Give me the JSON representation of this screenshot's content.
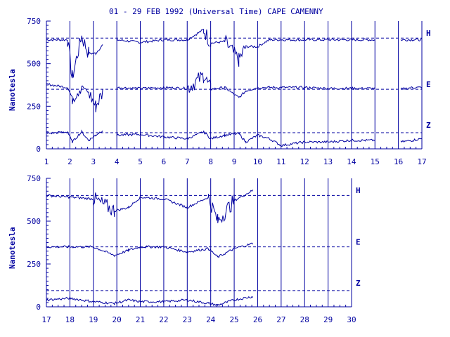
{
  "title": "01 - 29 FEB 1992 (Universal Time) CAPE CAMENNY",
  "colors": {
    "ink": "#0000a0",
    "background": "#ffffff"
  },
  "chart_data": [
    {
      "type": "line",
      "panel": "upper",
      "ylabel": "Nanotesla",
      "ylim": [
        0,
        750
      ],
      "yticks": [
        0,
        250,
        500,
        750
      ],
      "xlim": [
        1,
        17
      ],
      "xticks": [
        1,
        2,
        3,
        4,
        5,
        6,
        7,
        8,
        9,
        10,
        11,
        12,
        13,
        14,
        15,
        16,
        17
      ],
      "baselines": {
        "H": 650,
        "E": 350,
        "Z": 95
      },
      "series": [
        {
          "name": "H",
          "x": [
            1,
            1.9,
            2.1,
            2.5,
            2.8,
            3.1,
            3.4,
            3.6,
            4,
            5,
            6,
            7,
            7.7,
            8,
            8.6,
            9.2,
            9.5,
            10,
            10.5,
            11,
            12,
            13,
            14,
            15,
            15.1,
            16.1,
            16.6,
            17
          ],
          "values": [
            640,
            640,
            420,
            660,
            560,
            560,
            610,
            null,
            640,
            625,
            640,
            640,
            700,
            620,
            630,
            520,
            600,
            600,
            640,
            640,
            640,
            640,
            640,
            640,
            null,
            640,
            640,
            640
          ]
        },
        {
          "name": "E",
          "x": [
            1,
            1.9,
            2.1,
            2.5,
            2.8,
            3.1,
            3.4,
            3.6,
            4,
            5,
            6,
            7,
            7.7,
            8,
            8.6,
            9.2,
            9.5,
            10,
            10.5,
            11,
            12,
            13,
            14,
            15,
            15.1,
            16.1,
            16.6,
            17
          ],
          "values": [
            380,
            360,
            300,
            370,
            330,
            250,
            330,
            null,
            360,
            355,
            360,
            355,
            430,
            350,
            360,
            300,
            340,
            360,
            360,
            360,
            360,
            355,
            355,
            355,
            null,
            350,
            360,
            360
          ]
        },
        {
          "name": "Z",
          "x": [
            1,
            1.9,
            2.1,
            2.5,
            2.8,
            3.1,
            3.4,
            3.6,
            4,
            5,
            6,
            7,
            7.7,
            8,
            8.6,
            9.2,
            9.5,
            10,
            10.5,
            11,
            12,
            13,
            14,
            15,
            15.1,
            16.1,
            16.6,
            17
          ],
          "values": [
            90,
            100,
            40,
            100,
            50,
            80,
            110,
            null,
            80,
            85,
            70,
            60,
            100,
            60,
            80,
            90,
            40,
            80,
            60,
            20,
            40,
            40,
            50,
            50,
            null,
            40,
            50,
            60
          ]
        }
      ],
      "channel_labels": [
        "H",
        "E",
        "Z"
      ]
    },
    {
      "type": "line",
      "panel": "lower",
      "ylabel": "Nanotesla",
      "ylim": [
        0,
        750
      ],
      "yticks": [
        0,
        250,
        500,
        750
      ],
      "xlim": [
        17,
        30
      ],
      "xticks": [
        17,
        18,
        19,
        20,
        21,
        22,
        23,
        24,
        25,
        26,
        27,
        28,
        29,
        30
      ],
      "baselines": {
        "H": 650,
        "E": 350,
        "Z": 95
      },
      "series": [
        {
          "name": "H",
          "x": [
            17,
            18,
            19,
            19.9,
            20.5,
            21,
            22,
            23,
            23.9,
            24.3,
            25,
            25.8
          ],
          "values": [
            650,
            640,
            630,
            560,
            580,
            640,
            630,
            580,
            640,
            500,
            620,
            680
          ]
        },
        {
          "name": "E",
          "x": [
            17,
            18,
            19,
            19.9,
            20.5,
            21,
            22,
            23,
            23.9,
            24.3,
            25,
            25.8
          ],
          "values": [
            350,
            350,
            350,
            300,
            330,
            350,
            350,
            320,
            340,
            290,
            340,
            370
          ]
        },
        {
          "name": "Z",
          "x": [
            17,
            18,
            19,
            19.9,
            20.5,
            21,
            22,
            23,
            23.9,
            24.3,
            25,
            25.8
          ],
          "values": [
            40,
            50,
            30,
            20,
            40,
            30,
            30,
            40,
            20,
            10,
            40,
            60
          ]
        }
      ],
      "channel_labels": [
        "H",
        "E",
        "Z"
      ]
    }
  ]
}
